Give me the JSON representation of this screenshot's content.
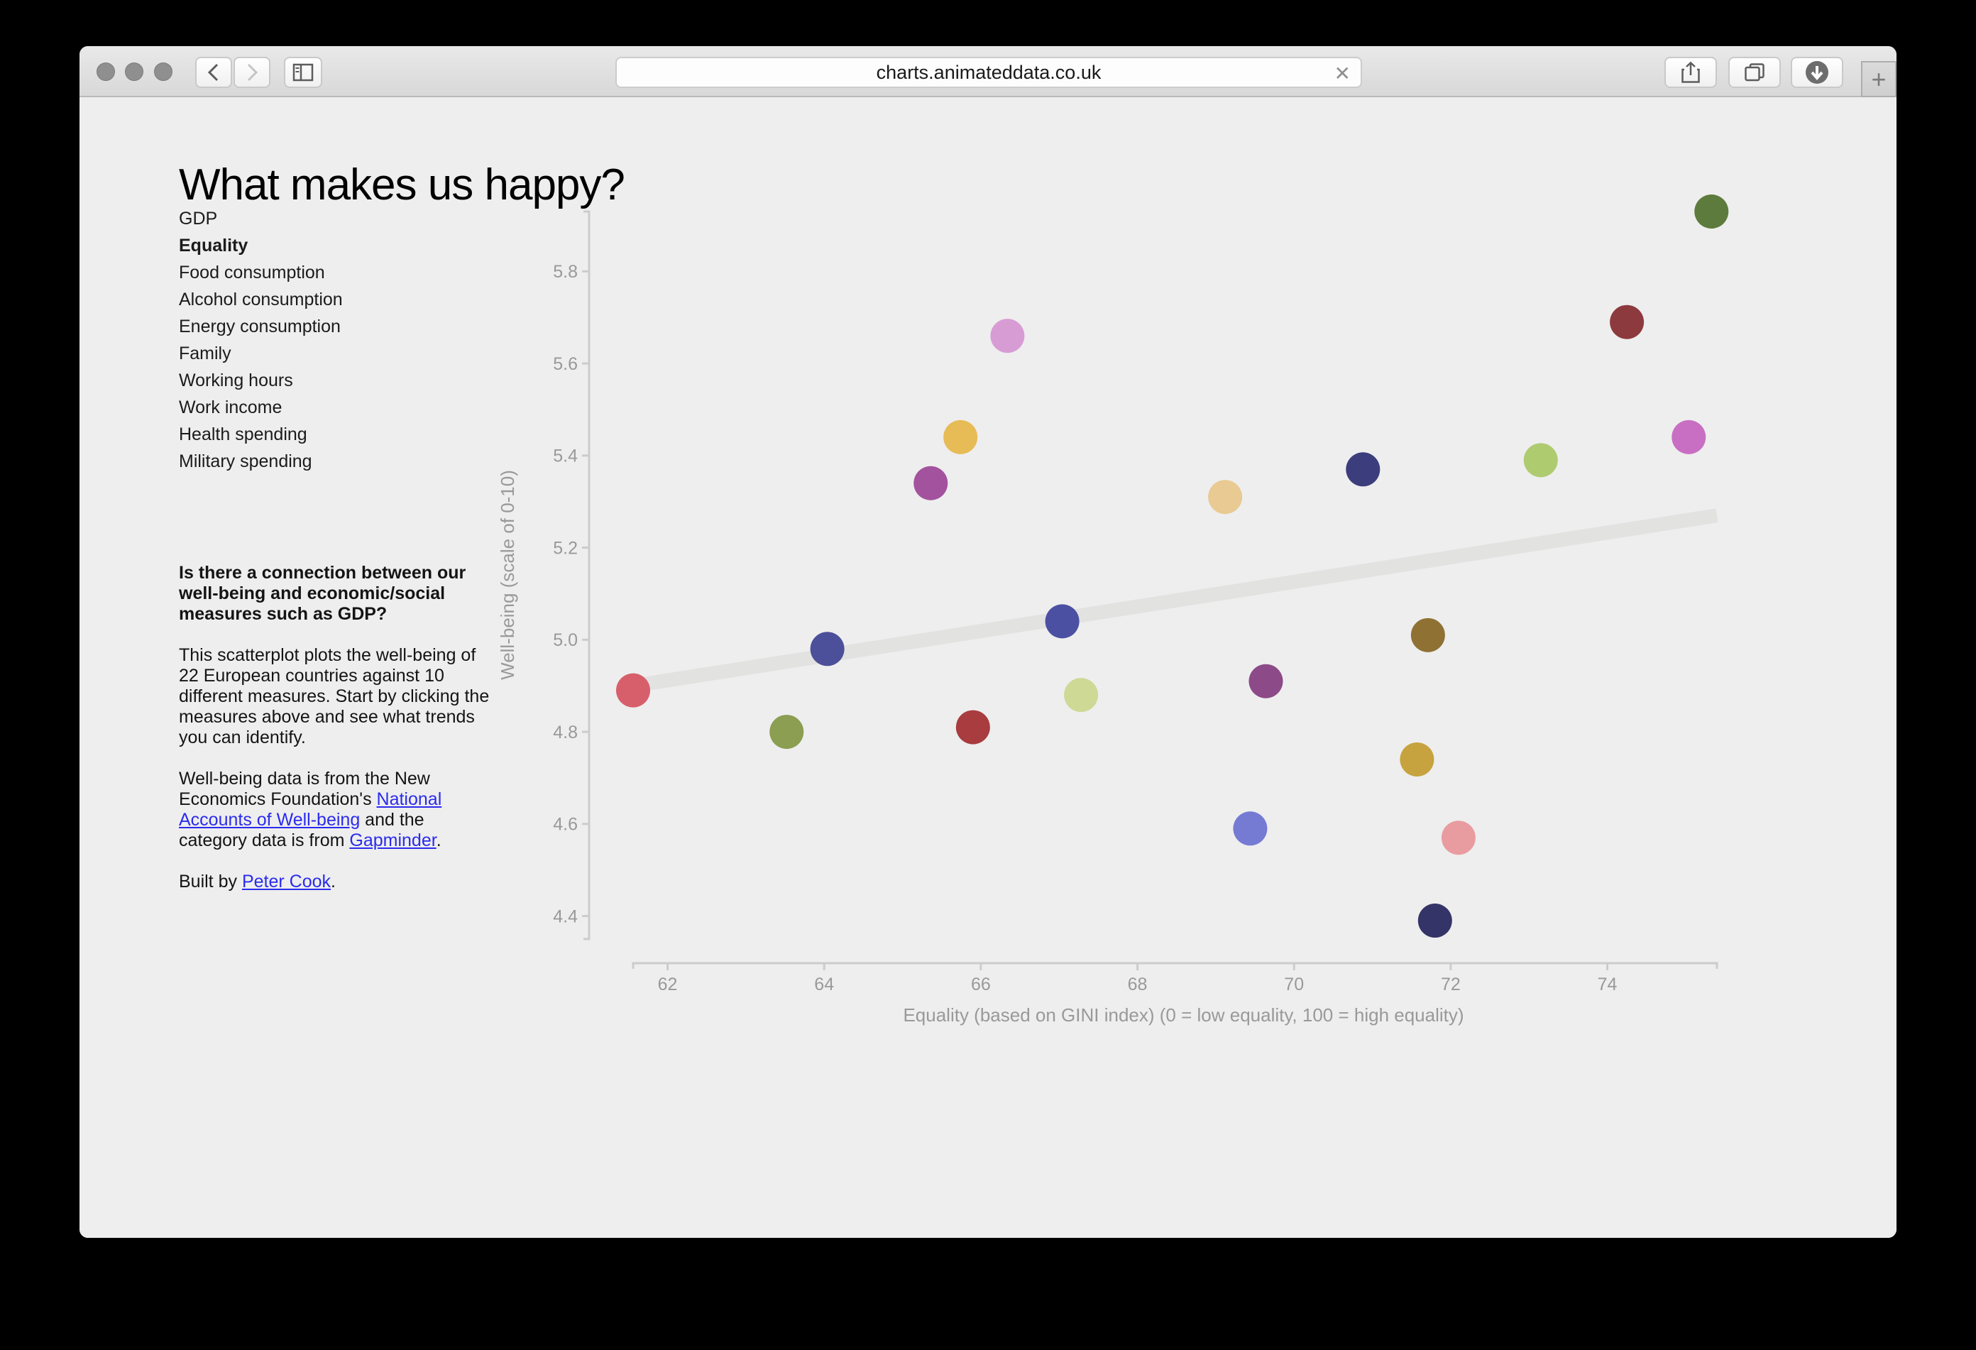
{
  "browser": {
    "url": "charts.animateddata.co.uk",
    "stop_label": "✕",
    "new_tab_label": "+"
  },
  "page": {
    "title": "What makes us happy?",
    "measures": [
      "GDP",
      "Equality",
      "Food consumption",
      "Alcohol consumption",
      "Energy consumption",
      "Family",
      "Working hours",
      "Work income",
      "Health spending",
      "Military spending"
    ],
    "selected_measure": "Equality",
    "intro_heading": "Is there a connection between our well-being and economic/social measures such as GDP?",
    "intro_body": "This scatterplot plots the well-being of 22 European countries against 10 different measures. Start by clicking the measures above and see what trends you can identify.",
    "credits": {
      "pre": "Well-being data is from the New Economics Foundation's ",
      "link1": "National Accounts of Well-being",
      "mid": " and the category data is from ",
      "link2": "Gapminder",
      "post": "."
    },
    "built_by": {
      "pre": "Built by ",
      "link": "Peter Cook",
      "post": "."
    }
  },
  "chart_data": {
    "type": "scatter",
    "title": "",
    "xlabel": "Equality (based on GINI index) (0 = low equality, 100 = high equality)",
    "ylabel": "Well-being (scale of 0-10)",
    "xlim": [
      61.56,
      75.4
    ],
    "ylim": [
      4.35,
      5.93
    ],
    "x_ticks": [
      62,
      64,
      66,
      68,
      70,
      72,
      74
    ],
    "y_ticks": [
      4.4,
      4.6,
      4.8,
      5.0,
      5.2,
      5.4,
      5.6,
      5.8
    ],
    "grid": false,
    "legend": false,
    "trend": {
      "x1": 61.56,
      "y1": 4.9,
      "x2": 75.4,
      "y2": 5.27,
      "color": "#e2e2e1"
    },
    "points": [
      {
        "x": 75.33,
        "y": 5.93,
        "color": "#5d7b3c"
      },
      {
        "x": 74.25,
        "y": 5.69,
        "color": "#8c3a3e"
      },
      {
        "x": 75.04,
        "y": 5.44,
        "color": "#c96fc3"
      },
      {
        "x": 66.34,
        "y": 5.66,
        "color": "#d89cd5"
      },
      {
        "x": 65.74,
        "y": 5.44,
        "color": "#e7bb55"
      },
      {
        "x": 65.36,
        "y": 5.34,
        "color": "#a3529e"
      },
      {
        "x": 69.12,
        "y": 5.31,
        "color": "#e8ca92"
      },
      {
        "x": 70.88,
        "y": 5.37,
        "color": "#3c3d7c"
      },
      {
        "x": 73.15,
        "y": 5.39,
        "color": "#afcb70"
      },
      {
        "x": 64.04,
        "y": 4.98,
        "color": "#4c4f99"
      },
      {
        "x": 67.04,
        "y": 5.04,
        "color": "#4c50a3"
      },
      {
        "x": 67.28,
        "y": 4.88,
        "color": "#cdd995"
      },
      {
        "x": 61.56,
        "y": 4.89,
        "color": "#d75f6b"
      },
      {
        "x": 63.52,
        "y": 4.8,
        "color": "#8b9e52"
      },
      {
        "x": 65.9,
        "y": 4.81,
        "color": "#a83c3e"
      },
      {
        "x": 69.64,
        "y": 4.91,
        "color": "#8c4a88"
      },
      {
        "x": 71.71,
        "y": 5.01,
        "color": "#8f7134"
      },
      {
        "x": 71.57,
        "y": 4.74,
        "color": "#c6a33e"
      },
      {
        "x": 69.44,
        "y": 4.59,
        "color": "#757bd3"
      },
      {
        "x": 72.1,
        "y": 4.57,
        "color": "#e99ca0"
      },
      {
        "x": 71.8,
        "y": 4.39,
        "color": "#353468"
      }
    ],
    "colors": {
      "background": "#eeeeee",
      "axis_line": "#cccccc",
      "tick_text": "#999999",
      "axis_label": "#999999"
    }
  }
}
